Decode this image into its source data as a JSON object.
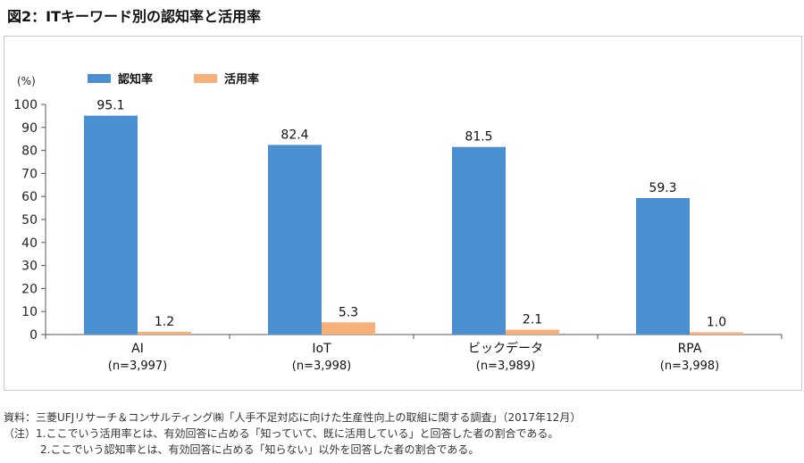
{
  "title": "図2：ITキーワード別の認知率と活用率",
  "chart_data": {
    "type": "bar",
    "unit_label": "(%)",
    "categories": [
      "AI",
      "IoT",
      "ビックデータ",
      "RPA"
    ],
    "sample_sizes": [
      "(n=3,997)",
      "(n=3,998)",
      "(n=3,989)",
      "(n=3,998)"
    ],
    "series": [
      {
        "name": "認知率",
        "color": "#4a8fd0",
        "values": [
          95.1,
          82.4,
          81.5,
          59.3
        ]
      },
      {
        "name": "活用率",
        "color": "#f7b07a",
        "values": [
          1.2,
          5.3,
          2.1,
          1.0
        ]
      }
    ],
    "value_labels": [
      [
        "95.1",
        "82.4",
        "81.5",
        "59.3"
      ],
      [
        "1.2",
        "5.3",
        "2.1",
        "1.0"
      ]
    ],
    "ylim": [
      0,
      100
    ],
    "yticks": [
      0,
      10,
      20,
      30,
      40,
      50,
      60,
      70,
      80,
      90,
      100
    ],
    "ytick_labels": [
      "0",
      "10",
      "20",
      "30",
      "40",
      "50",
      "60",
      "70",
      "80",
      "90",
      "100"
    ],
    "grid": false,
    "legend_position": "top-left"
  },
  "footnotes": {
    "source": "資料：三菱UFJリサーチ＆コンサルティング㈱「人手不足対応に向けた生産性向上の取組に関する調査」（2017年12月）",
    "note1": "（注）1.ここでいう活用率とは、有効回答に占める「知っていて、既に活用している」と回答した者の割合である。",
    "note2": "2.ここでいう認知率とは、有効回答に占める「知らない」以外を回答した者の割合である。"
  }
}
